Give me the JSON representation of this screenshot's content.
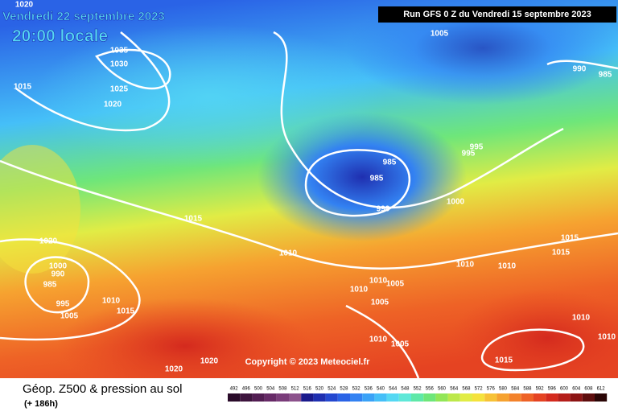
{
  "header": {
    "date": "Vendredi 22 septembre 2023",
    "time": "20:00 locale",
    "run": "Run GFS 0 Z du Vendredi 15 septembre 2023",
    "copyright": "Copyright © 2023 Meteociel.fr"
  },
  "footer": {
    "title": "Géop. Z500 & pression au sol",
    "lead": "(+ 186h)"
  },
  "legend": {
    "scale": [
      492,
      496,
      500,
      504,
      508,
      512,
      516,
      520,
      524,
      528,
      532,
      536,
      540,
      544,
      548,
      552,
      556,
      560,
      564,
      568,
      572,
      576,
      580,
      584,
      588,
      592,
      596,
      600,
      604,
      608,
      612
    ],
    "colors": [
      "#2a0b2a",
      "#3d143d",
      "#521d52",
      "#672a67",
      "#7a3c7a",
      "#8c528c",
      "#1a1a8c",
      "#1f2fb0",
      "#2448d0",
      "#2a63e6",
      "#3382f2",
      "#3aa2f7",
      "#45bff8",
      "#55d8f3",
      "#5fe8d8",
      "#5fe8a8",
      "#6ee67a",
      "#92e657",
      "#bce84a",
      "#e1ec45",
      "#f5e23c",
      "#f7c236",
      "#f6a230",
      "#f3822b",
      "#ee6226",
      "#e54322",
      "#d42a1e",
      "#b51e1a",
      "#8c1414",
      "#5e0d0d",
      "#2a0505"
    ]
  },
  "isobars": [
    "1020",
    "1035",
    "1030",
    "1015",
    "1025",
    "1020",
    "1005",
    "990",
    "985",
    "995",
    "995",
    "985",
    "985",
    "990",
    "1000",
    "1015",
    "1020",
    "1010",
    "1010",
    "1010",
    "1015",
    "1015",
    "1000",
    "990",
    "985",
    "995",
    "1005",
    "1010",
    "1015",
    "1010",
    "1005",
    "1010",
    "1005",
    "1010",
    "1010",
    "1005",
    "1015",
    "1020",
    "1020",
    "1010"
  ]
}
